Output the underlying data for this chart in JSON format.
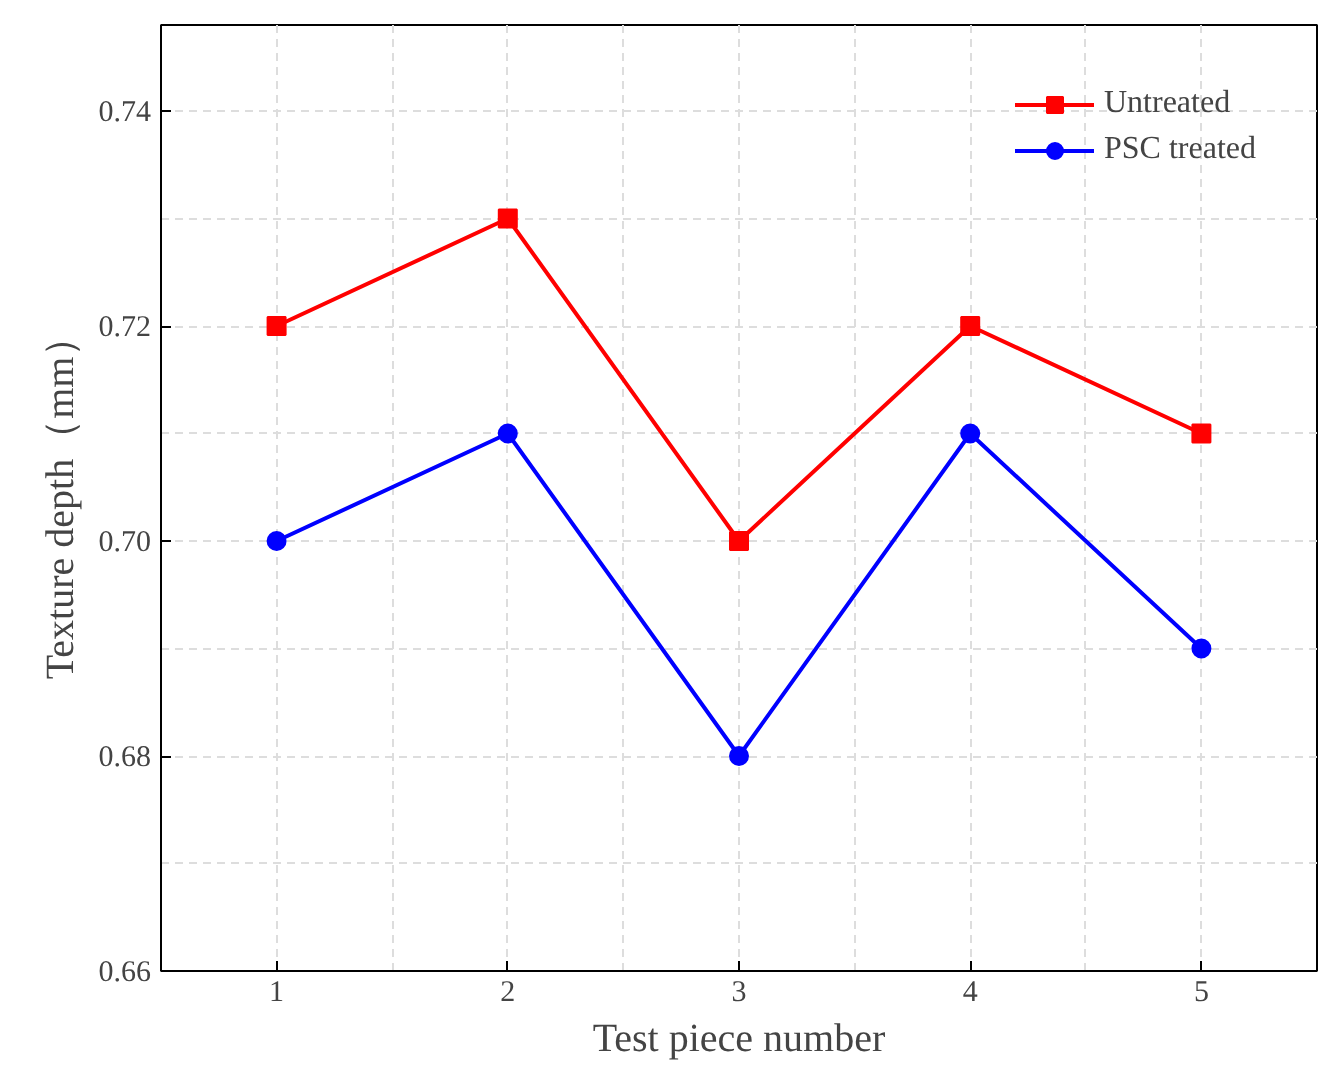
{
  "chart_data": {
    "type": "line",
    "xlabel": "Test piece number",
    "ylabel": "Texture depth（mm）",
    "x": [
      1,
      2,
      3,
      4,
      5
    ],
    "series": [
      {
        "name": "Untreated",
        "color": "#ff0000",
        "marker": "square",
        "values": [
          0.72,
          0.73,
          0.7,
          0.72,
          0.71
        ]
      },
      {
        "name": "PSC treated",
        "color": "#0000ff",
        "marker": "circle",
        "values": [
          0.7,
          0.71,
          0.68,
          0.71,
          0.69
        ]
      }
    ],
    "xlim": [
      0.5,
      5.5
    ],
    "xticks": [
      1,
      2,
      3,
      4,
      5
    ],
    "ylim": [
      0.66,
      0.748
    ],
    "yticks": [
      {
        "value": 0.66,
        "label": "0.66"
      },
      {
        "value": 0.68,
        "label": "0.68"
      },
      {
        "value": 0.7,
        "label": "0.70"
      },
      {
        "value": 0.72,
        "label": "0.72"
      },
      {
        "value": 0.74,
        "label": "0.74"
      }
    ],
    "grid": true,
    "legend": "top right",
    "line_style": "solid"
  }
}
